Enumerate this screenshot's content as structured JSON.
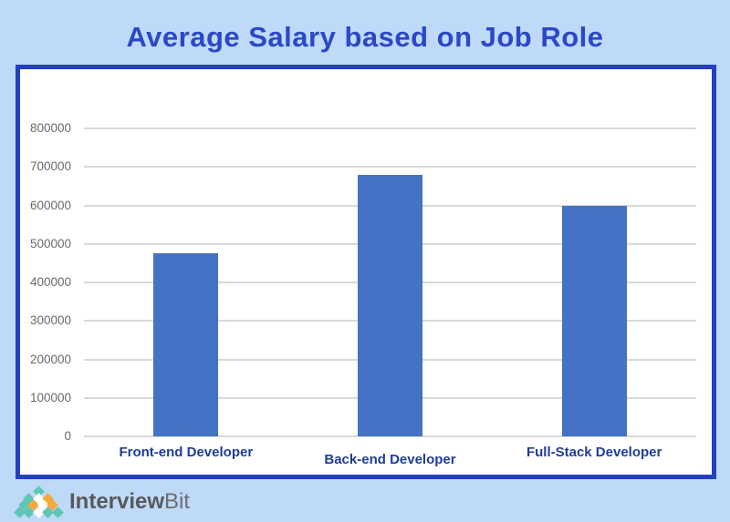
{
  "chart_data": {
    "type": "bar",
    "title": "Average Salary based on Job Role",
    "categories": [
      "Front-end Developer",
      "Back-end Developer",
      "Full-Stack Developer"
    ],
    "values": [
      475000,
      680000,
      600000
    ],
    "xlabel": "",
    "ylabel": "",
    "ylim": [
      0,
      800000
    ],
    "ytick_step": 100000,
    "ytick_labels": [
      "0",
      "100000",
      "200000",
      "300000",
      "400000",
      "500000",
      "600000",
      "700000",
      "800000"
    ],
    "grid": true,
    "legend_position": "none",
    "bar_color": "#4472c4",
    "gridline_color": "#d9d9d9",
    "title_color": "#2b48c9",
    "x_label_color": "#1f3c99",
    "y_label_color": "#666a6e"
  },
  "panel": {
    "background": "#ffffff",
    "border_color": "#2340c0",
    "page_background": "#bedaf8"
  },
  "footer": {
    "logo_text_primary": "Interview",
    "logo_text_secondary": "Bit",
    "logo_icon": "interviewbit-diamond-pyramid-icon",
    "logo_pyramid": {
      "rows": [
        [
          "teal"
        ],
        [
          "teal",
          "white",
          "orange"
        ],
        [
          "teal",
          "orange",
          "white",
          "orange"
        ],
        [
          "teal",
          "teal",
          "white",
          "teal",
          "teal"
        ]
      ],
      "colors": {
        "teal": "#5fc6b6",
        "white": "#ffffff",
        "orange": "#f5a83c"
      }
    }
  }
}
